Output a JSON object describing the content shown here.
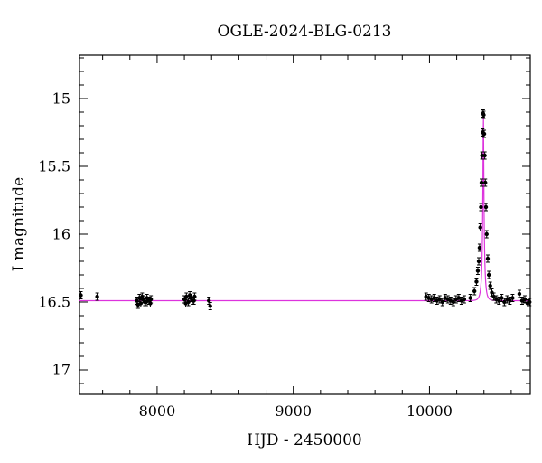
{
  "chart_data": {
    "type": "scatter",
    "title": "OGLE-2024-BLG-0213",
    "xlabel": "HJD - 2450000",
    "ylabel": "I magnitude",
    "xlim": [
      7430,
      10740
    ],
    "ylim": [
      17.18,
      14.68
    ],
    "y_inverted": true,
    "x_ticks": [
      8000,
      9000,
      10000
    ],
    "y_ticks": [
      15,
      15.5,
      16,
      16.5,
      17
    ],
    "x_tick_labels": [
      "8000",
      "9000",
      "10000"
    ],
    "y_tick_labels": [
      "15",
      "15.5",
      "16",
      "16.5",
      "17"
    ],
    "grid": false,
    "colors": {
      "points": "#000000",
      "model": "#dd33dd"
    },
    "observations": {
      "x": [
        7440,
        7560,
        7850,
        7870,
        7880,
        7895,
        7910,
        7925,
        7940,
        7955,
        7860,
        7890,
        7920,
        7950,
        8200,
        8215,
        8230,
        8245,
        8260,
        8275,
        8210,
        8240,
        8270,
        8380,
        8390,
        9975,
        9995,
        10015,
        10035,
        10055,
        10075,
        10095,
        10115,
        10135,
        10155,
        10175,
        10195,
        10215,
        10235,
        10255,
        10300,
        10330,
        10345,
        10355,
        10362,
        10368,
        10373,
        10378,
        10382,
        10386,
        10390,
        10394,
        10398,
        10402,
        10406,
        10410,
        10415,
        10420,
        10428,
        10436,
        10446,
        10458,
        10472,
        10490,
        10510,
        10530,
        10550,
        10570,
        10590,
        10610,
        10660,
        10680,
        10700,
        10720,
        10735
      ],
      "y": [
        16.45,
        16.46,
        16.49,
        16.47,
        16.51,
        16.48,
        16.5,
        16.47,
        16.49,
        16.48,
        16.52,
        16.46,
        16.5,
        16.51,
        16.48,
        16.46,
        16.5,
        16.47,
        16.49,
        16.46,
        16.51,
        16.45,
        16.49,
        16.49,
        16.53,
        16.46,
        16.47,
        16.48,
        16.47,
        16.49,
        16.48,
        16.5,
        16.47,
        16.48,
        16.49,
        16.5,
        16.48,
        16.47,
        16.49,
        16.48,
        16.47,
        16.42,
        16.35,
        16.27,
        16.2,
        16.1,
        15.95,
        15.8,
        15.62,
        15.42,
        15.25,
        15.11,
        15.12,
        15.26,
        15.42,
        15.62,
        15.8,
        16.0,
        16.18,
        16.3,
        16.38,
        16.43,
        16.46,
        16.48,
        16.49,
        16.47,
        16.5,
        16.48,
        16.49,
        16.47,
        16.44,
        16.49,
        16.48,
        16.51,
        16.5
      ]
    },
    "model": {
      "baseline_mag": 16.49,
      "peak_mag": 15.11,
      "t0": 10396,
      "tE": 18,
      "u0": 0.12
    }
  }
}
